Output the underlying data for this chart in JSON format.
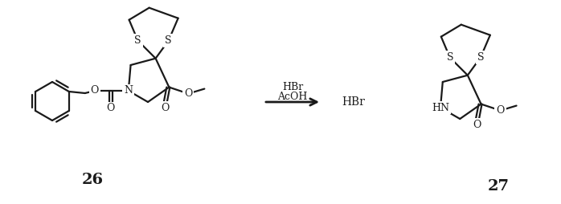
{
  "background_color": "#ffffff",
  "line_color": "#1a1a1a",
  "line_width": 1.6,
  "label_26": "26",
  "label_27": "27",
  "arrow_label_top": "HBr",
  "arrow_label_mid": "AcOH",
  "arrow_label_bot": "HBr",
  "S_label": "S",
  "N_label": "N",
  "O_label": "O",
  "HN_label": "HN"
}
